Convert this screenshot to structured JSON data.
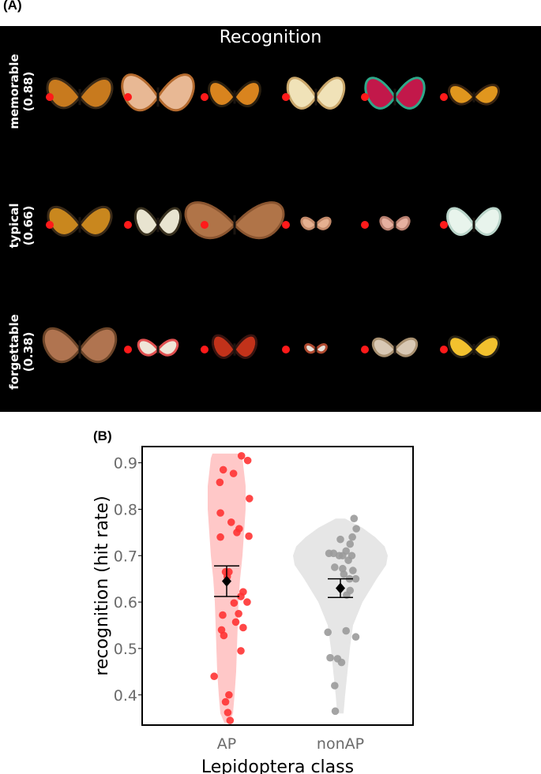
{
  "panel_a": {
    "label": "(A)",
    "title": "Recognition",
    "rows": [
      {
        "label": "memorable",
        "score": "(0.88)"
      },
      {
        "label": "typical",
        "score": "(0.66)"
      },
      {
        "label": "forgettable",
        "score": "(0.38)"
      }
    ],
    "marker_color": "#ff1a1a"
  },
  "panel_b": {
    "label": "(B)"
  },
  "chart_data": {
    "type": "scatter",
    "subtype": "violin-jitter with mean ± SE",
    "xlabel": "Lepidoptera class",
    "ylabel": "recognition (hit rate)",
    "categories": [
      "AP",
      "nonAP"
    ],
    "ylim": [
      0.335,
      0.935
    ],
    "yticks": [
      0.4,
      0.5,
      0.6,
      0.7,
      0.8,
      0.9
    ],
    "grid": false,
    "colors": {
      "AP": "#ff3333",
      "AP_violin": "#ffc8c8",
      "nonAP": "#9a9a9a",
      "nonAP_violin": "#e6e6e6",
      "tick": "#6b6b6b"
    },
    "series": [
      {
        "name": "AP",
        "mean": 0.645,
        "error_low": 0.612,
        "error_high": 0.678,
        "violin_min": 0.34,
        "violin_max": 0.92,
        "points": [
          {
            "dx": 0.26,
            "y": 0.915
          },
          {
            "dx": 0.37,
            "y": 0.905
          },
          {
            "dx": -0.06,
            "y": 0.885
          },
          {
            "dx": 0.12,
            "y": 0.877
          },
          {
            "dx": -0.12,
            "y": 0.858
          },
          {
            "dx": 0.4,
            "y": 0.823
          },
          {
            "dx": -0.11,
            "y": 0.792
          },
          {
            "dx": 0.08,
            "y": 0.772
          },
          {
            "dx": 0.22,
            "y": 0.758
          },
          {
            "dx": 0.18,
            "y": 0.75
          },
          {
            "dx": -0.11,
            "y": 0.74
          },
          {
            "dx": 0.39,
            "y": 0.742
          },
          {
            "dx": 0.04,
            "y": 0.665
          },
          {
            "dx": -0.02,
            "y": 0.665
          },
          {
            "dx": 0.01,
            "y": 0.655
          },
          {
            "dx": 0.29,
            "y": 0.622
          },
          {
            "dx": 0.25,
            "y": 0.612
          },
          {
            "dx": 0.36,
            "y": 0.6
          },
          {
            "dx": 0.13,
            "y": 0.598
          },
          {
            "dx": 0.21,
            "y": 0.575
          },
          {
            "dx": -0.07,
            "y": 0.572
          },
          {
            "dx": 0.16,
            "y": 0.557
          },
          {
            "dx": 0.29,
            "y": 0.545
          },
          {
            "dx": -0.09,
            "y": 0.54
          },
          {
            "dx": -0.05,
            "y": 0.528
          },
          {
            "dx": 0.25,
            "y": 0.495
          },
          {
            "dx": -0.22,
            "y": 0.44
          },
          {
            "dx": 0.04,
            "y": 0.4
          },
          {
            "dx": -0.02,
            "y": 0.385
          },
          {
            "dx": 0.02,
            "y": 0.362
          },
          {
            "dx": 0.06,
            "y": 0.345
          }
        ]
      },
      {
        "name": "nonAP",
        "mean": 0.63,
        "error_low": 0.61,
        "error_high": 0.65,
        "violin_min": 0.36,
        "violin_max": 0.78,
        "points": [
          {
            "dx": 0.24,
            "y": 0.78
          },
          {
            "dx": 0.28,
            "y": 0.758
          },
          {
            "dx": 0.21,
            "y": 0.74
          },
          {
            "dx": 0.0,
            "y": 0.735
          },
          {
            "dx": 0.17,
            "y": 0.725
          },
          {
            "dx": 0.1,
            "y": 0.71
          },
          {
            "dx": -0.2,
            "y": 0.705
          },
          {
            "dx": -0.12,
            "y": 0.705
          },
          {
            "dx": -0.02,
            "y": 0.7
          },
          {
            "dx": 0.04,
            "y": 0.7
          },
          {
            "dx": 0.14,
            "y": 0.69
          },
          {
            "dx": 0.2,
            "y": 0.7
          },
          {
            "dx": -0.1,
            "y": 0.675
          },
          {
            "dx": 0.04,
            "y": 0.672
          },
          {
            "dx": 0.22,
            "y": 0.668
          },
          {
            "dx": 0.06,
            "y": 0.66
          },
          {
            "dx": 0.16,
            "y": 0.65
          },
          {
            "dx": 0.27,
            "y": 0.65
          },
          {
            "dx": 0.17,
            "y": 0.625
          },
          {
            "dx": 0.11,
            "y": 0.615
          },
          {
            "dx": -0.22,
            "y": 0.535
          },
          {
            "dx": 0.27,
            "y": 0.525
          },
          {
            "dx": 0.1,
            "y": 0.538
          },
          {
            "dx": -0.18,
            "y": 0.48
          },
          {
            "dx": -0.05,
            "y": 0.478
          },
          {
            "dx": 0.02,
            "y": 0.47
          },
          {
            "dx": -0.1,
            "y": 0.42
          },
          {
            "dx": -0.09,
            "y": 0.365
          }
        ]
      }
    ]
  }
}
